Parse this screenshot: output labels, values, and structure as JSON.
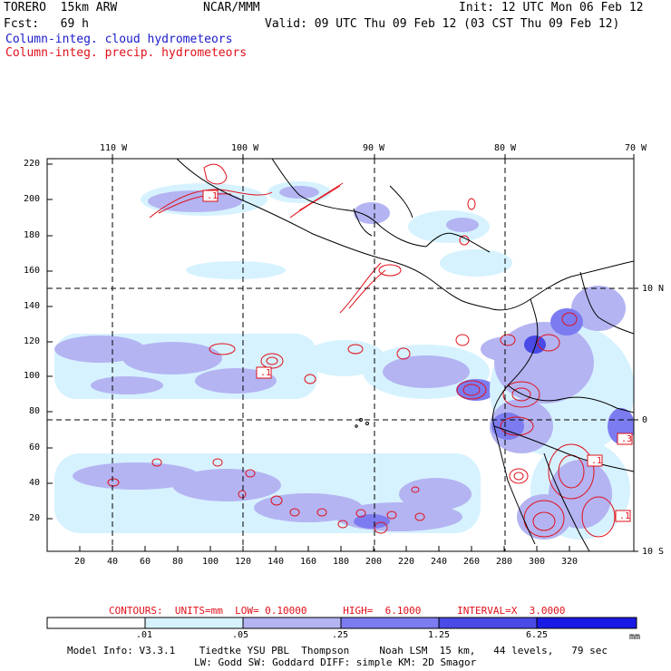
{
  "header": {
    "model_name": "TORERO  15km ARW",
    "center": "NCAR/MMM",
    "init": "Init: 12 UTC Mon 06 Feb 12",
    "forecast": "Fcst:   69 h",
    "valid": "Valid: 09 UTC Thu 09 Feb 12 (03 CST Thu 09 Feb 12)",
    "field_cloud": "Column-integ. cloud hydrometeors",
    "field_precip": "Column-integ. precip. hydrometeors"
  },
  "map": {
    "lon_labels": [
      "110 W",
      "100 W",
      "90 W",
      "80 W",
      "70 W"
    ],
    "lat_labels": [
      "10 N",
      "0",
      "10 S"
    ],
    "y_ticks": [
      "220",
      "200",
      "180",
      "160",
      "140",
      "120",
      "100",
      "80",
      "60",
      "40",
      "20"
    ],
    "x_ticks": [
      "20",
      "40",
      "60",
      "80",
      "100",
      "120",
      "140",
      "160",
      "180",
      "200",
      "220",
      "240",
      "260",
      "280",
      "300",
      "320"
    ],
    "contour_labels": [
      ".1",
      ".1",
      ".3",
      ".1",
      ".1"
    ],
    "colors": {
      "shade1": "#d6f2ff",
      "shade2": "#b4b4f2",
      "shade3": "#7c7cf0",
      "shade4": "#4a4ae6",
      "shade5": "#1a1ae6",
      "contour": "#e0101a",
      "coast": "#000000"
    }
  },
  "contour_info": {
    "text": "CONTOURS:  UNITS=mm  LOW= 0.10000      HIGH=  6.1000      INTERVAL=X  3.0000"
  },
  "colorbar": {
    "ticks": [
      ".01",
      ".05",
      ".25",
      "1.25",
      "6.25"
    ],
    "unit": "mm",
    "colors": [
      "#ffffff",
      "#d6f2ff",
      "#b4b4f2",
      "#7c7cf0",
      "#4a4ae6",
      "#1a1ae6"
    ]
  },
  "footer": {
    "line1": "Model Info: V3.3.1    Tiedtke YSU PBL  Thompson     Noah LSM  15 km,   44 levels,   79 sec",
    "line2": "LW: Godd SW: Goddard DIFF: simple KM: 2D Smagor"
  }
}
